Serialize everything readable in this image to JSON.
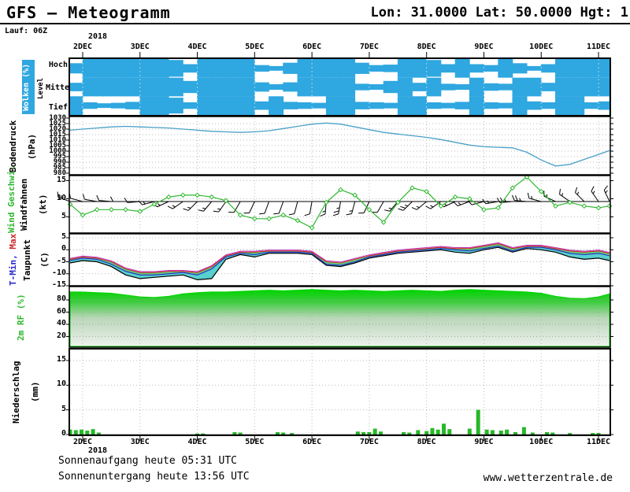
{
  "header": {
    "title": "GFS – Meteogramm",
    "location": "Lon: 31.0000 Lat: 50.0000 Hgt: 1",
    "run": "Lauf: 06Z"
  },
  "footer": {
    "sunrise": "Sonnenaufgang heute 05:31 UTC",
    "sunset": "Sonnenuntergang heute 13:56 UTC",
    "site": "www.wetterzentrale.de"
  },
  "axis": {
    "year": "2018",
    "tick_labels": [
      "2DEC",
      "3DEC",
      "4DEC",
      "5DEC",
      "6DEC",
      "7DEC",
      "8DEC",
      "9DEC",
      "10DEC",
      "11DEC"
    ]
  },
  "panel_labels": {
    "clouds_key": "Wolken (%)",
    "clouds_axis": "Level",
    "cloud_levels": [
      "Hoch",
      "Mittel",
      "Tief"
    ],
    "pressure_name": "Bodendruck",
    "pressure_unit": "(hPa)",
    "wind_name": "Wind Geschwi.",
    "wind_name2": "Windfahnen",
    "wind_unit": "(kt)",
    "temp_name_min": "T-Min, ",
    "temp_name_max": "Max",
    "temp_name2": "Taupunkt",
    "temp_unit": "(C)",
    "humidity_name": "2m RF (%)",
    "precip_name": "Niederschlag",
    "precip_unit": "(mm)"
  },
  "colors": {
    "cloud_blue": "#2fa7e0",
    "pressure_line": "#4aa0c8",
    "wind_green": "#2eb82e",
    "humid_green": "#00d400",
    "precip_green": "#28b828",
    "temp_red": "#cc2a2a",
    "temp_blue": "#2a2acc",
    "temp_magenta": "#bb33bb",
    "dew_black": "#000000",
    "fill_cyan": "#3cc8c8",
    "fill_green": "#44c862",
    "grid": "#bbbbbb"
  },
  "time_days": [
    1.75,
    2,
    2.25,
    2.5,
    2.75,
    3,
    3.25,
    3.5,
    3.75,
    4,
    4.25,
    4.5,
    4.75,
    5,
    5.25,
    5.5,
    5.75,
    6,
    6.25,
    6.5,
    6.75,
    7,
    7.25,
    7.5,
    7.75,
    8,
    8.25,
    8.5,
    8.75,
    9,
    9.25,
    9.5,
    9.75,
    10,
    10.25,
    10.5,
    10.75,
    11,
    11.25
  ],
  "chart_data": [
    {
      "id": "clouds",
      "type": "heatmap",
      "title": "Wolken (%)",
      "ylabel": "Level",
      "rows": [
        "Hoch",
        "Mittel",
        "Tief"
      ],
      "series": {
        "hoch": [
          55,
          100,
          100,
          100,
          100,
          100,
          100,
          90,
          45,
          100,
          100,
          100,
          100,
          35,
          25,
          60,
          100,
          100,
          100,
          100,
          60,
          35,
          40,
          100,
          100,
          90,
          45,
          100,
          45,
          35,
          100,
          55,
          25,
          45,
          100,
          100,
          100,
          100,
          65
        ],
        "mittel": [
          45,
          100,
          100,
          100,
          100,
          100,
          100,
          100,
          65,
          100,
          100,
          100,
          100,
          50,
          30,
          50,
          100,
          100,
          100,
          100,
          35,
          30,
          65,
          100,
          45,
          100,
          35,
          30,
          100,
          40,
          35,
          100,
          100,
          45,
          100,
          100,
          100,
          100,
          90
        ],
        "tief": [
          100,
          35,
          25,
          30,
          40,
          100,
          100,
          85,
          35,
          100,
          100,
          100,
          100,
          45,
          100,
          40,
          35,
          30,
          100,
          100,
          40,
          35,
          30,
          100,
          100,
          35,
          30,
          40,
          100,
          35,
          30,
          100,
          45,
          35,
          100,
          100,
          35,
          45,
          100
        ]
      }
    },
    {
      "id": "pressure",
      "type": "line",
      "ylabel": "Bodendruck (hPa)",
      "ylim": [
        980,
        1030
      ],
      "yticks": [
        1030,
        1025,
        1020,
        1015,
        1010,
        1005,
        1000,
        995,
        990,
        985,
        980
      ],
      "values": [
        1019,
        1020,
        1021,
        1022,
        1022.5,
        1022,
        1021.5,
        1021,
        1020,
        1019,
        1018,
        1017.5,
        1017,
        1017.5,
        1018.5,
        1020.5,
        1022.5,
        1024.5,
        1025.5,
        1024.5,
        1022,
        1019.5,
        1017,
        1015.5,
        1014,
        1012.5,
        1010.5,
        1008,
        1005.5,
        1004,
        1003.5,
        1003,
        999,
        992,
        986.5,
        988,
        992.5,
        997,
        1000.5
      ]
    },
    {
      "id": "wind",
      "type": "line",
      "ylabel": "Wind Geschwi. Windfahnen (kt)",
      "ylim": [
        0,
        16.5
      ],
      "yticks": [
        15,
        10,
        5
      ],
      "speed_kt": [
        8.5,
        5.5,
        7,
        7,
        7,
        6.5,
        8.5,
        10.5,
        11,
        11,
        10.5,
        9.5,
        5.5,
        4.5,
        4.5,
        5.5,
        4,
        2,
        9,
        12.5,
        11,
        7,
        3.5,
        9,
        13,
        12,
        8,
        10.5,
        10,
        7,
        7.5,
        13,
        16,
        12,
        8,
        9,
        8,
        7.5,
        8
      ],
      "dir_deg": [
        290,
        285,
        280,
        275,
        270,
        265,
        255,
        245,
        235,
        225,
        220,
        215,
        210,
        205,
        200,
        200,
        195,
        190,
        185,
        190,
        195,
        205,
        210,
        220,
        225,
        230,
        235,
        245,
        250,
        255,
        260,
        265,
        275,
        285,
        295,
        305,
        315,
        325,
        335
      ]
    },
    {
      "id": "temperature",
      "type": "line",
      "ylabel": "T-Min, Max Taupunkt (C)",
      "ylim": [
        -16.5,
        6.5
      ],
      "yticks": [
        5,
        0,
        -5,
        -10,
        -15
      ],
      "series": [
        {
          "name": "T-Max",
          "values": [
            -4,
            -3,
            -3.5,
            -5,
            -8,
            -9.5,
            -9.5,
            -9,
            -9,
            -9.5,
            -7,
            -2.5,
            -1,
            -1,
            -0.5,
            -0.5,
            -0.5,
            -1,
            -5,
            -5.5,
            -4,
            -2.5,
            -1.5,
            -0.5,
            0,
            0.5,
            1,
            0.5,
            0.5,
            1.5,
            2.5,
            0.5,
            1.5,
            1.5,
            0.5,
            -0.5,
            -1,
            -0.5,
            -1.5
          ]
        },
        {
          "name": "T-Min",
          "values": [
            -4.5,
            -3.5,
            -4,
            -6,
            -9,
            -10.5,
            -10.5,
            -10,
            -9.5,
            -10.5,
            -8,
            -3,
            -1.5,
            -2,
            -1,
            -1,
            -1,
            -1.5,
            -6,
            -6.5,
            -5,
            -3,
            -2,
            -1,
            -0.5,
            0,
            0.5,
            0,
            -0.5,
            0.5,
            1.5,
            -0.5,
            1,
            1,
            0,
            -1.5,
            -2,
            -1.5,
            -2.5
          ]
        },
        {
          "name": "Taupunkt",
          "values": [
            -5.5,
            -4.5,
            -5,
            -7,
            -10.5,
            -12,
            -11.5,
            -11,
            -10.5,
            -12.5,
            -12,
            -4,
            -2,
            -3,
            -1.5,
            -1.5,
            -1.5,
            -2,
            -6.5,
            -7,
            -5.5,
            -3.5,
            -2.5,
            -1.5,
            -1,
            -0.5,
            0,
            -1,
            -1.5,
            0,
            1,
            -1,
            0.5,
            0,
            -1,
            -3,
            -4,
            -3.5,
            -4.5
          ]
        }
      ]
    },
    {
      "id": "humidity",
      "type": "area",
      "ylabel": "2m RF (%)",
      "ylim": [
        0,
        102
      ],
      "yticks": [
        80,
        60,
        40,
        20
      ],
      "values": [
        93,
        93,
        92,
        91,
        88,
        85,
        84,
        86,
        90,
        92,
        93,
        93,
        94,
        95,
        96,
        95,
        96,
        97,
        96,
        95,
        96,
        95,
        94,
        95,
        96,
        95,
        94,
        96,
        97,
        96,
        95,
        94,
        93,
        91,
        86,
        83,
        82,
        85,
        90
      ]
    },
    {
      "id": "precipitation",
      "type": "bar",
      "ylabel": "Niederschlag (mm)",
      "ylim": [
        0,
        17.5
      ],
      "yticks": [
        15,
        10,
        5,
        0
      ],
      "bars": [
        [
          1.78,
          1.0
        ],
        [
          1.88,
          0.9
        ],
        [
          1.98,
          1.0
        ],
        [
          2.08,
          0.8
        ],
        [
          2.18,
          1.1
        ],
        [
          2.28,
          0.4
        ],
        [
          4.0,
          0.2
        ],
        [
          4.1,
          0.2
        ],
        [
          4.65,
          0.5
        ],
        [
          4.75,
          0.4
        ],
        [
          5.4,
          0.5
        ],
        [
          5.5,
          0.4
        ],
        [
          5.65,
          0.3
        ],
        [
          6.8,
          0.6
        ],
        [
          6.9,
          0.5
        ],
        [
          7.0,
          0.5
        ],
        [
          7.1,
          1.2
        ],
        [
          7.2,
          0.6
        ],
        [
          7.6,
          0.5
        ],
        [
          7.7,
          0.4
        ],
        [
          7.85,
          0.9
        ],
        [
          8.0,
          0.7
        ],
        [
          8.1,
          1.3
        ],
        [
          8.2,
          1.0
        ],
        [
          8.3,
          2.2
        ],
        [
          8.4,
          1.1
        ],
        [
          8.75,
          1.2
        ],
        [
          8.9,
          5.0
        ],
        [
          9.05,
          1.0
        ],
        [
          9.15,
          0.9
        ],
        [
          9.3,
          0.8
        ],
        [
          9.4,
          1.0
        ],
        [
          9.55,
          0.5
        ],
        [
          9.7,
          1.5
        ],
        [
          9.85,
          0.4
        ],
        [
          10.1,
          0.5
        ],
        [
          10.2,
          0.4
        ],
        [
          10.5,
          0.3
        ],
        [
          10.9,
          0.3
        ],
        [
          11.0,
          0.3
        ]
      ]
    }
  ]
}
